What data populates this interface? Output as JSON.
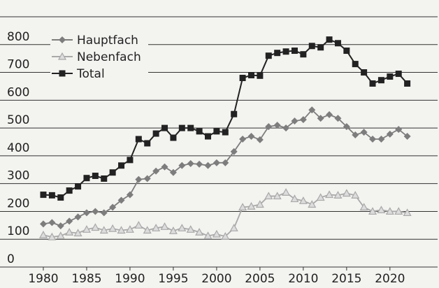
{
  "chart_data": {
    "type": "line",
    "x": [
      1980,
      1981,
      1982,
      1983,
      1984,
      1985,
      1986,
      1987,
      1988,
      1989,
      1990,
      1991,
      1992,
      1993,
      1994,
      1995,
      1996,
      1997,
      1998,
      1999,
      2000,
      2001,
      2002,
      2003,
      2004,
      2005,
      2006,
      2007,
      2008,
      2009,
      2010,
      2011,
      2012,
      2013,
      2014,
      2015,
      2016,
      2017,
      2018,
      2019,
      2020,
      2021,
      2022
    ],
    "series": [
      {
        "name": "Hauptfach",
        "color": "#7d7d7d",
        "marker": "diamond",
        "values": [
          155,
          160,
          148,
          165,
          180,
          195,
          200,
          195,
          215,
          240,
          260,
          315,
          318,
          345,
          360,
          340,
          365,
          372,
          370,
          365,
          375,
          375,
          415,
          460,
          470,
          458,
          505,
          510,
          500,
          525,
          530,
          565,
          535,
          548,
          535,
          505,
          475,
          485,
          460,
          460,
          478,
          495,
          470
        ]
      },
      {
        "name": "Nebenfach",
        "color": "#a9a9a9",
        "marker": "triangle",
        "values": [
          115,
          108,
          112,
          125,
          122,
          135,
          142,
          132,
          138,
          132,
          135,
          150,
          132,
          140,
          145,
          130,
          140,
          135,
          125,
          112,
          118,
          110,
          140,
          215,
          218,
          225,
          255,
          255,
          268,
          245,
          238,
          225,
          250,
          260,
          258,
          265,
          258,
          215,
          200,
          205,
          200,
          200,
          195
        ]
      },
      {
        "name": "Total",
        "color": "#222222",
        "marker": "square",
        "values": [
          260,
          258,
          250,
          275,
          290,
          320,
          328,
          318,
          340,
          365,
          385,
          460,
          445,
          480,
          500,
          465,
          500,
          500,
          488,
          470,
          488,
          485,
          550,
          680,
          690,
          688,
          760,
          770,
          775,
          778,
          765,
          795,
          790,
          818,
          805,
          778,
          730,
          700,
          660,
          672,
          685,
          695,
          660
        ]
      }
    ],
    "xlim": [
      1975,
      2025.5
    ],
    "xticks": [
      1980,
      1985,
      1990,
      1995,
      2000,
      2005,
      2010,
      2015,
      2020
    ],
    "ylim": [
      0,
      900
    ],
    "yticks": [
      0,
      100,
      200,
      300,
      400,
      500,
      600,
      700,
      800
    ],
    "grid": true,
    "legend": "top-left"
  }
}
